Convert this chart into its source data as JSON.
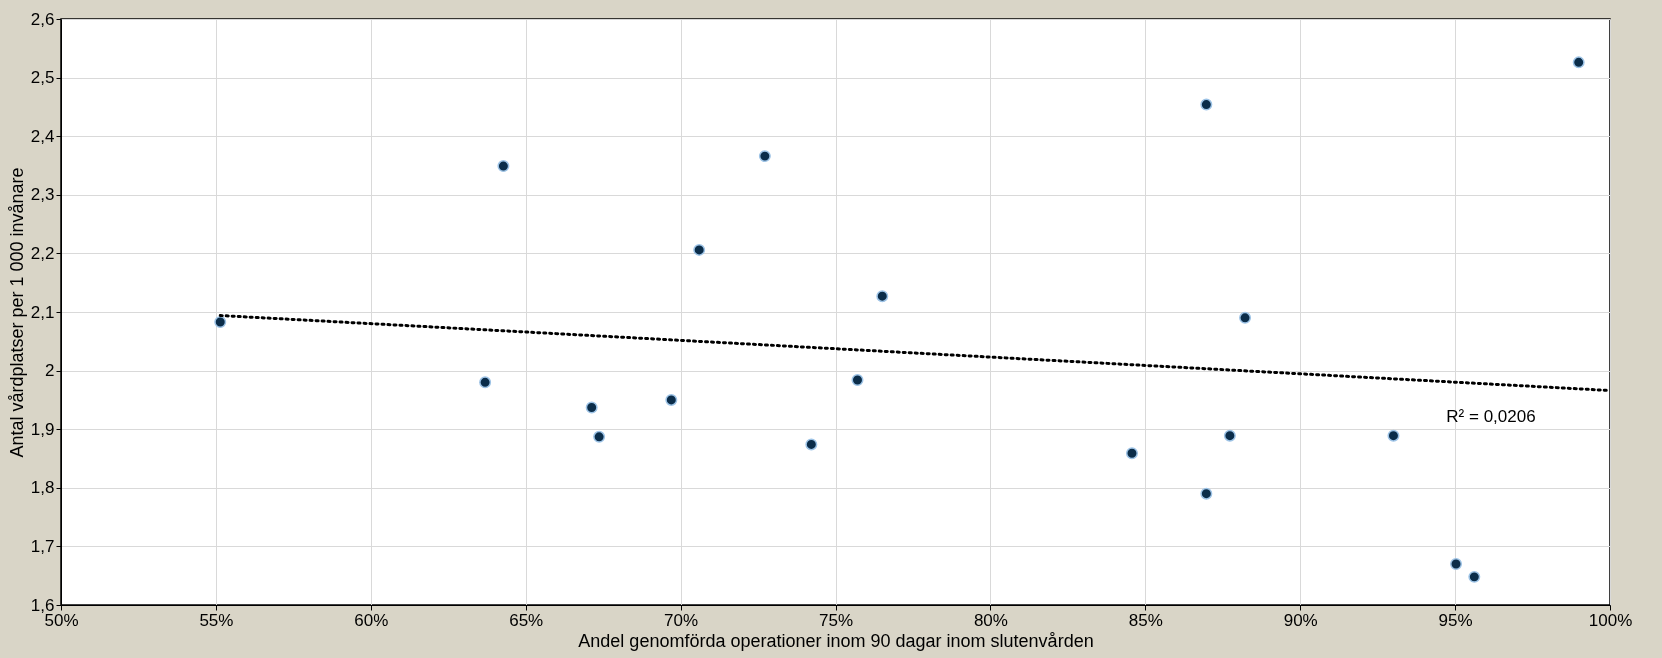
{
  "chart_data": {
    "type": "scatter",
    "xlabel": "Andel genomförda operationer inom 90 dagar inom slutenvården",
    "ylabel": "Antal vårdplatser per 1 000 invånare",
    "xlim": [
      50,
      100
    ],
    "ylim": [
      1.6,
      2.6
    ],
    "xticks": [
      {
        "value": 50,
        "label": "50%"
      },
      {
        "value": 55,
        "label": "55%"
      },
      {
        "value": 60,
        "label": "60%"
      },
      {
        "value": 65,
        "label": "65%"
      },
      {
        "value": 70,
        "label": "70%"
      },
      {
        "value": 75,
        "label": "75%"
      },
      {
        "value": 80,
        "label": "80%"
      },
      {
        "value": 85,
        "label": "85%"
      },
      {
        "value": 90,
        "label": "90%"
      },
      {
        "value": 95,
        "label": "95%"
      },
      {
        "value": 100,
        "label": "100%"
      }
    ],
    "yticks": [
      {
        "value": 1.6,
        "label": "1,6"
      },
      {
        "value": 1.7,
        "label": "1,7"
      },
      {
        "value": 1.8,
        "label": "1,8"
      },
      {
        "value": 1.9,
        "label": "1,9"
      },
      {
        "value": 2,
        "label": "2"
      },
      {
        "value": 2.1,
        "label": "2,1"
      },
      {
        "value": 2.2,
        "label": "2,2"
      },
      {
        "value": 2.3,
        "label": "2,3"
      },
      {
        "value": 2.4,
        "label": "2,4"
      },
      {
        "value": 2.5,
        "label": "2,5"
      },
      {
        "value": 2.6,
        "label": "2,6"
      }
    ],
    "grid": true,
    "legend": false,
    "annotations": [
      "R² = 0,0206"
    ],
    "series": [
      {
        "type": "scatter",
        "color": "#0b2d4a",
        "marker": "circle",
        "x": [
          55.14,
          63.69,
          64.28,
          67.13,
          67.37,
          69.7,
          70.6,
          72.72,
          74.22,
          75.71,
          76.51,
          84.57,
          86.97,
          86.97,
          87.73,
          88.22,
          93.01,
          95.03,
          95.62,
          98.99
        ],
        "values": [
          2.083,
          1.98,
          2.349,
          1.937,
          1.887,
          1.95,
          2.206,
          2.366,
          1.874,
          1.984,
          2.127,
          1.859,
          2.454,
          1.79,
          1.889,
          2.09,
          1.889,
          1.67,
          1.648,
          2.526
        ]
      },
      {
        "type": "line",
        "color": "#000000",
        "line_style": "dotted",
        "x": [
          55.14,
          100
        ],
        "values": [
          2.094,
          1.966
        ]
      }
    ]
  }
}
